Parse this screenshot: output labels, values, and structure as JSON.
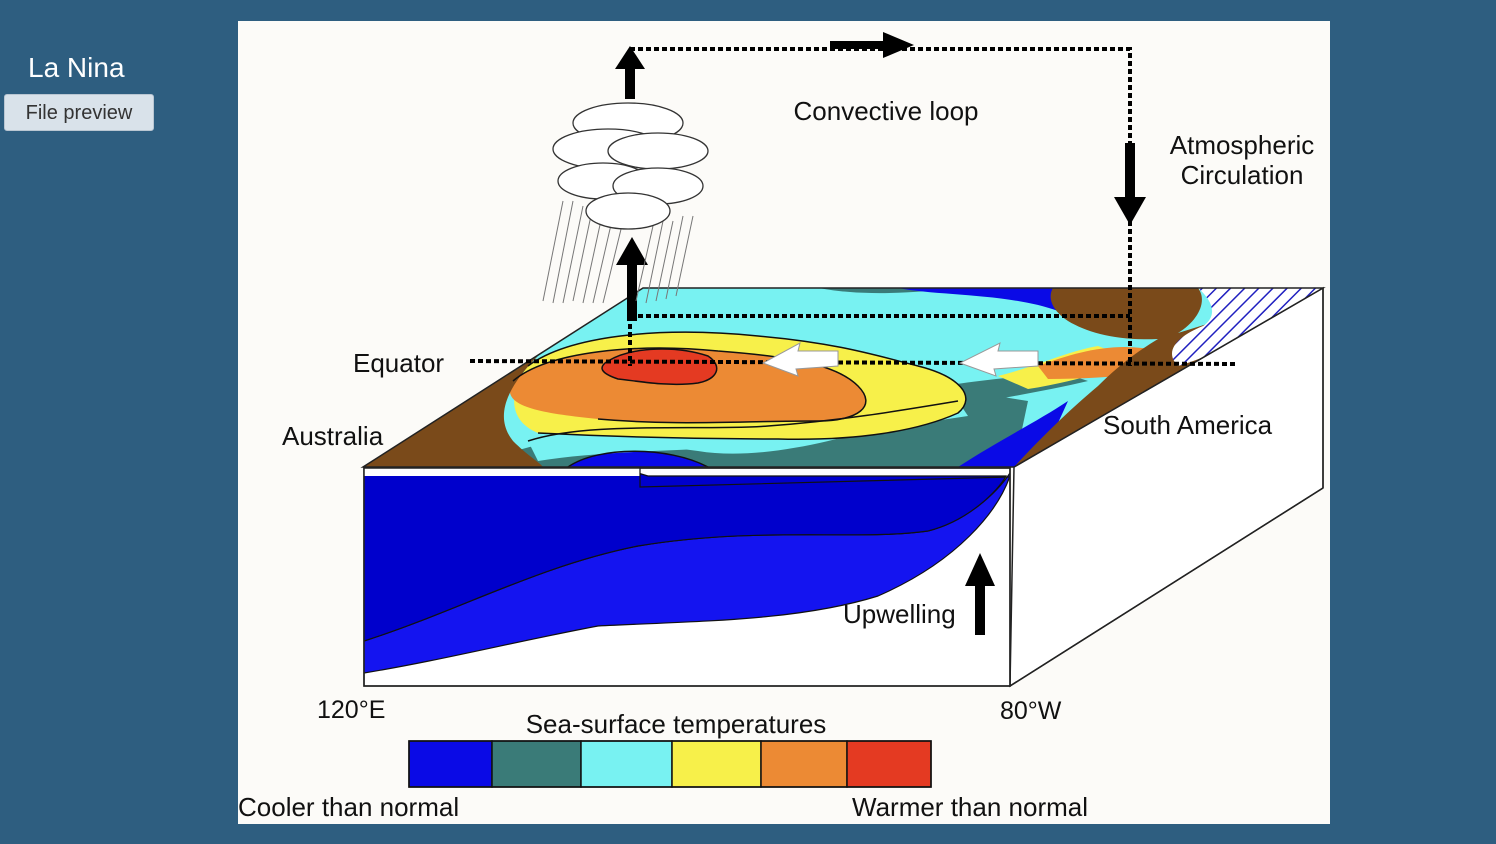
{
  "sidebar": {
    "title": "La Nina",
    "preview_button": "File preview"
  },
  "diagram": {
    "labels": {
      "convective_loop": "Convective loop",
      "atmospheric_line1": "Atmospheric",
      "atmospheric_line2": "Circulation",
      "equator": "Equator",
      "australia": "Australia",
      "south_america": "South America",
      "upwelling": "Upwelling",
      "lon_west": "120°E",
      "lon_east": "80°W"
    },
    "legend": {
      "title": "Sea-surface temperatures",
      "cool_label": "Cooler than normal",
      "warm_label": "Warmer than normal",
      "colors": [
        "#0a0ae6",
        "#3a7b78",
        "#78f2f2",
        "#f7f04a",
        "#ec8a34",
        "#e43a22"
      ]
    },
    "colors": {
      "land": "#7a4a1a",
      "deep_cold": "#0000cc",
      "cold_layer": "#1414f0"
    }
  }
}
